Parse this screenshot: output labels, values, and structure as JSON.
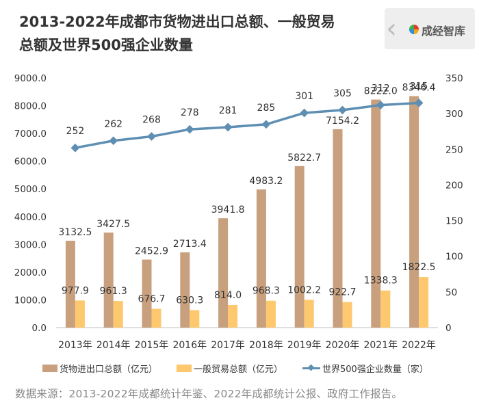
{
  "title_lines": [
    "2013-2022年成都市货物进出口总额、一般贸易",
    "总额及世界500强企业数量"
  ],
  "brand": {
    "name": "成经智库",
    "icon": "brand-logo-icon"
  },
  "colors": {
    "trade": "#c9a07d",
    "general": "#fdc86e",
    "fortune": "#5e8fb3"
  },
  "source": "数据来源：2013-2022年成都统计年鉴、2022年成都统计公报、政府工作报告。",
  "chart_data": {
    "type": "bar",
    "categories": [
      "2013年",
      "2014年",
      "2015年",
      "2016年",
      "2017年",
      "2018年",
      "2019年",
      "2020年",
      "2021年",
      "2022年"
    ],
    "series": [
      {
        "name": "货物进出口总额（亿元）",
        "type": "bar",
        "axis": "left",
        "values": [
          3132.5,
          3427.5,
          2452.9,
          2713.4,
          3941.8,
          4983.2,
          5822.7,
          7154.2,
          8222.0,
          8346.4
        ],
        "labels": [
          "3132.5",
          "3427.5",
          "2452.9",
          "2713.4",
          "3941.8",
          "4983.2",
          "5822.7",
          "7154.2",
          "8222.0",
          "8346.4"
        ]
      },
      {
        "name": "一般贸易总额（亿元）",
        "type": "bar",
        "axis": "left",
        "values": [
          977.9,
          961.3,
          676.7,
          630.3,
          814.0,
          968.3,
          1002.2,
          922.7,
          1338.3,
          1822.5
        ],
        "labels": [
          "977.9",
          "961.3",
          "676.7",
          "630.3",
          "814.0",
          "968.3",
          "1002.2",
          "922.7",
          "1338.3",
          "1822.5"
        ]
      },
      {
        "name": "世界500强企业数量（家）",
        "type": "line",
        "axis": "right",
        "values": [
          252,
          262,
          268,
          278,
          281,
          285,
          301,
          305,
          312,
          315
        ],
        "labels": [
          "252",
          "262",
          "268",
          "278",
          "281",
          "285",
          "301",
          "305",
          "312",
          "315"
        ]
      }
    ],
    "ylim": [
      0,
      9000
    ],
    "yticks": [
      "0.0",
      "1000.0",
      "2000.0",
      "3000.0",
      "4000.0",
      "5000.0",
      "6000.0",
      "7000.0",
      "8000.0",
      "9000.0"
    ],
    "y2lim": [
      0,
      350
    ],
    "y2ticks": [
      "0",
      "50",
      "100",
      "150",
      "200",
      "250",
      "300",
      "350"
    ],
    "legend_position": "bottom",
    "grid": false
  }
}
